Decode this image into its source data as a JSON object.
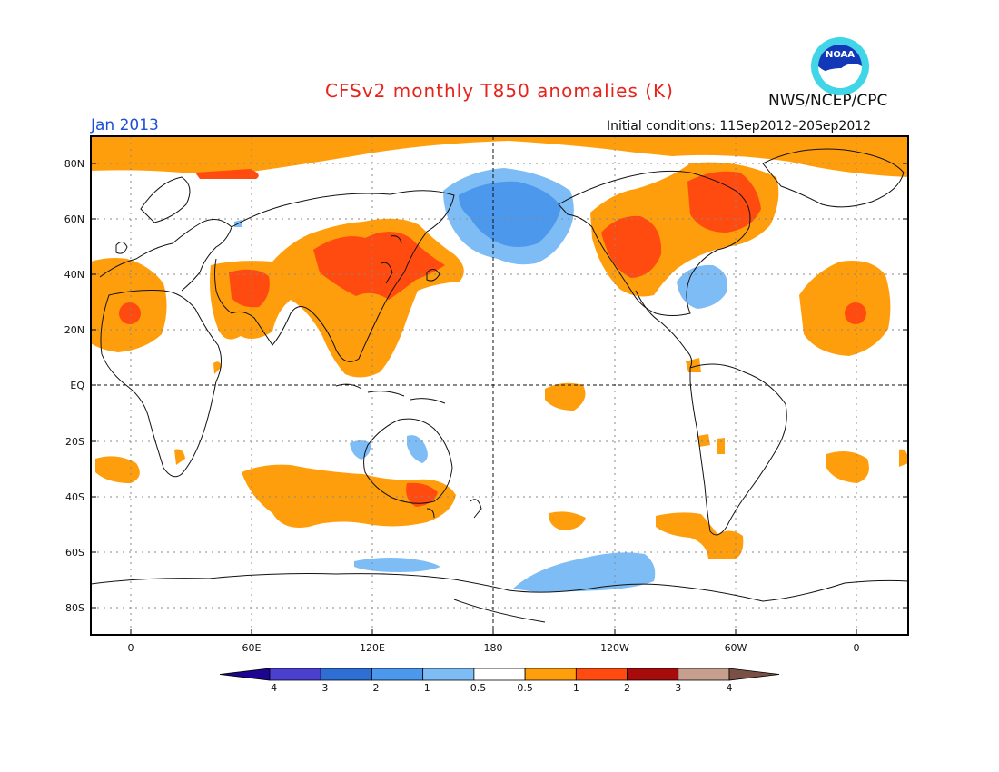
{
  "title": "CFSv2 monthly T850 anomalies (K)",
  "month": "Jan 2013",
  "org": "NWS/NCEP/CPC",
  "initial_conditions": "Initial conditions: 11Sep2012–20Sep2012",
  "logo_text": "NOAA",
  "lat_labels": [
    "80N",
    "60N",
    "40N",
    "20N",
    "EQ",
    "20S",
    "40S",
    "60S",
    "80S"
  ],
  "lon_labels": [
    "0",
    "60E",
    "120E",
    "180",
    "120W",
    "60W",
    "0"
  ],
  "colorbar": {
    "ticks": [
      "−4",
      "−3",
      "−2",
      "−1",
      "−0.5",
      "0.5",
      "1",
      "2",
      "3",
      "4"
    ],
    "colors": [
      "#1d0591",
      "#4b3fd0",
      "#2e6fd6",
      "#4b98ec",
      "#7ebcf5",
      "#ffffff",
      "#ff9e0c",
      "#ff4a10",
      "#a80b0b",
      "#c79f8f",
      "#7a4f45"
    ]
  }
}
